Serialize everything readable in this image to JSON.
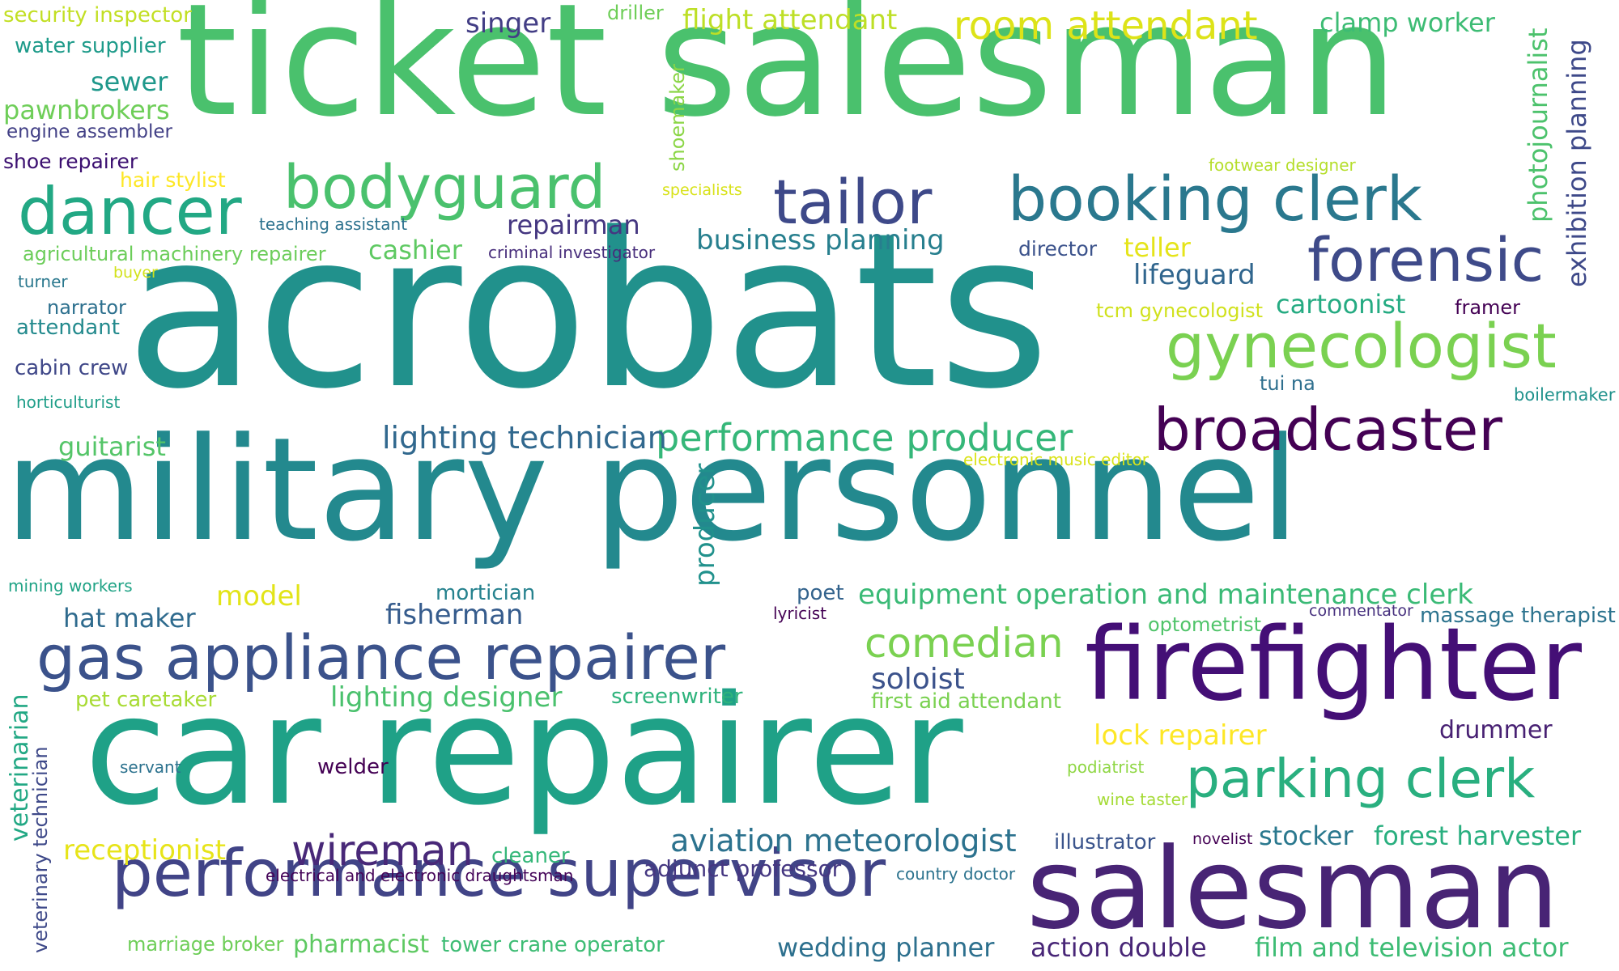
{
  "words": [
    {
      "id": "ticket-salesman",
      "text": "ticket salesman",
      "color": "#4ac16d"
    },
    {
      "id": "acrobats",
      "text": "acrobats",
      "color": "#21918c"
    },
    {
      "id": "military-personnel",
      "text": "military personnel",
      "color": "#23898e"
    },
    {
      "id": "car-repairer",
      "text": "car repairer",
      "color": "#1fa187"
    },
    {
      "id": "salesman",
      "text": "salesman",
      "color": "#482475"
    },
    {
      "id": "firefighter",
      "text": "firefighter",
      "color": "#440f76"
    },
    {
      "id": "gas-appliance-repairer",
      "text": "gas appliance repairer",
      "color": "#3b528b"
    },
    {
      "id": "performance-supervisor",
      "text": "performance supervisor",
      "color": "#414487"
    },
    {
      "id": "bodyguard",
      "text": "bodyguard",
      "color": "#4ac16d"
    },
    {
      "id": "dancer",
      "text": "dancer",
      "color": "#22a884"
    },
    {
      "id": "booking-clerk",
      "text": "booking clerk",
      "color": "#2a788e"
    },
    {
      "id": "tailor",
      "text": "tailor",
      "color": "#3e4989"
    },
    {
      "id": "forensic",
      "text": "forensic",
      "color": "#3e4a89"
    },
    {
      "id": "gynecologist",
      "text": "gynecologist",
      "color": "#7ad151"
    },
    {
      "id": "broadcaster",
      "text": "broadcaster",
      "color": "#440154"
    },
    {
      "id": "parking-clerk",
      "text": "parking clerk",
      "color": "#29af7f"
    },
    {
      "id": "room-attendant",
      "text": "room attendant",
      "color": "#dde318"
    },
    {
      "id": "performance-producer",
      "text": "performance producer",
      "color": "#35b779"
    },
    {
      "id": "comedian",
      "text": "comedian",
      "color": "#7ad151"
    },
    {
      "id": "wireman",
      "text": "wireman",
      "color": "#482878"
    },
    {
      "id": "aviation-meteorologist",
      "text": "aviation meteorologist",
      "color": "#2c728e"
    },
    {
      "id": "flight-attendant",
      "text": "flight attendant",
      "color": "#bddf26"
    },
    {
      "id": "clamp-worker",
      "text": "clamp worker",
      "color": "#3dbc74"
    },
    {
      "id": "singer",
      "text": "singer",
      "color": "#433e85"
    },
    {
      "id": "driller",
      "text": "driller",
      "color": "#6ece58"
    },
    {
      "id": "security-inspector",
      "text": "security inspector",
      "color": "#c2df23"
    },
    {
      "id": "water-supplier",
      "text": "water supplier",
      "color": "#1e9b8a"
    },
    {
      "id": "sewer",
      "text": "sewer",
      "color": "#1f988b"
    },
    {
      "id": "pawnbrokers",
      "text": "pawnbrokers",
      "color": "#6ece58"
    },
    {
      "id": "engine-assembler",
      "text": "engine assembler",
      "color": "#424086"
    },
    {
      "id": "shoe-repairer",
      "text": "shoe repairer",
      "color": "#3b0f70"
    },
    {
      "id": "hair-stylist",
      "text": "hair stylist",
      "color": "#fde725"
    },
    {
      "id": "teaching-assistant",
      "text": "teaching assistant",
      "color": "#2c728e"
    },
    {
      "id": "agricultural-machinery-repairer",
      "text": "agricultural machinery repairer",
      "color": "#6ccd5a"
    },
    {
      "id": "turner",
      "text": "turner",
      "color": "#2a788e"
    },
    {
      "id": "buyer",
      "text": "buyer",
      "color": "#d2e21b"
    },
    {
      "id": "narrator",
      "text": "narrator",
      "color": "#2d708e"
    },
    {
      "id": "attendant",
      "text": "attendant",
      "color": "#238a8d"
    },
    {
      "id": "cabin-crew",
      "text": "cabin crew",
      "color": "#3f4788"
    },
    {
      "id": "horticulturist",
      "text": "horticulturist",
      "color": "#1f9e89"
    },
    {
      "id": "guitarist",
      "text": "guitarist",
      "color": "#54c568"
    },
    {
      "id": "repairman",
      "text": "repairman",
      "color": "#453781"
    },
    {
      "id": "cashier",
      "text": "cashier",
      "color": "#5ec962"
    },
    {
      "id": "criminal-investigator",
      "text": "criminal investigator",
      "color": "#472d7b"
    },
    {
      "id": "business-planning",
      "text": "business planning",
      "color": "#277f8e"
    },
    {
      "id": "director",
      "text": "director",
      "color": "#3b528b"
    },
    {
      "id": "teller",
      "text": "teller",
      "color": "#e5e419"
    },
    {
      "id": "lifeguard",
      "text": "lifeguard",
      "color": "#31668e"
    },
    {
      "id": "tcm-gynecologist",
      "text": "tcm gynecologist",
      "color": "#d0e11c"
    },
    {
      "id": "cartoonist",
      "text": "cartoonist",
      "color": "#25ab82"
    },
    {
      "id": "framer",
      "text": "framer",
      "color": "#440154"
    },
    {
      "id": "specialists",
      "text": "specialists",
      "color": "#d8e219"
    },
    {
      "id": "footwear-designer",
      "text": "footwear designer",
      "color": "#b5de2b"
    },
    {
      "id": "tui-na",
      "text": "tui na",
      "color": "#2e6f8e"
    },
    {
      "id": "boilermaker",
      "text": "boilermaker",
      "color": "#20928c"
    },
    {
      "id": "lighting-technician",
      "text": "lighting technician",
      "color": "#31688e"
    },
    {
      "id": "electronic-music-editor",
      "text": "electronic music editor",
      "color": "#dae319"
    },
    {
      "id": "mining-workers",
      "text": "mining workers",
      "color": "#20a386"
    },
    {
      "id": "model",
      "text": "model",
      "color": "#e2e418"
    },
    {
      "id": "mortician",
      "text": "mortician",
      "color": "#26828e"
    },
    {
      "id": "poet",
      "text": "poet",
      "color": "#33638d"
    },
    {
      "id": "lyricist",
      "text": "lyricist",
      "color": "#440154"
    },
    {
      "id": "equipment-operation-and-maintenance-clerk",
      "text": "equipment operation and maintenance clerk",
      "color": "#3aba76"
    },
    {
      "id": "optometrist",
      "text": "optometrist",
      "color": "#50c46a"
    },
    {
      "id": "commentator",
      "text": "commentator",
      "color": "#46307e"
    },
    {
      "id": "massage-therapist",
      "text": "massage therapist",
      "color": "#2c738e"
    },
    {
      "id": "hat-maker",
      "text": "hat maker",
      "color": "#2f6b8e"
    },
    {
      "id": "fisherman",
      "text": "fisherman",
      "color": "#365c8d"
    },
    {
      "id": "pet-caretaker",
      "text": "pet caretaker",
      "color": "#a8db34"
    },
    {
      "id": "lighting-designer",
      "text": "lighting designer",
      "color": "#4ac16d"
    },
    {
      "id": "screenwriter",
      "text": "screenwriter",
      "color": "#2eb37c"
    },
    {
      "id": "soloist",
      "text": "soloist",
      "color": "#3b528b"
    },
    {
      "id": "first-aid-attendant",
      "text": "first aid attendant",
      "color": "#7ad151"
    },
    {
      "id": "lock-repairer",
      "text": "lock repairer",
      "color": "#fde725"
    },
    {
      "id": "drummer",
      "text": "drummer",
      "color": "#482173"
    },
    {
      "id": "servant",
      "text": "servant",
      "color": "#2c728e"
    },
    {
      "id": "welder",
      "text": "welder",
      "color": "#440154"
    },
    {
      "id": "podiatrist",
      "text": "podiatrist",
      "color": "#8fd744"
    },
    {
      "id": "wine-taster",
      "text": "wine taster",
      "color": "#a5db36"
    },
    {
      "id": "receptionist",
      "text": "receptionist",
      "color": "#e7e419"
    },
    {
      "id": "cleaner",
      "text": "cleaner",
      "color": "#35b779"
    },
    {
      "id": "electrical-and-electronic-draughtsman",
      "text": "electrical and electronic draughtsman",
      "color": "#450559"
    },
    {
      "id": "adjunct-professor",
      "text": "adjunct professor",
      "color": "#453781"
    },
    {
      "id": "illustrator",
      "text": "illustrator",
      "color": "#3a548c"
    },
    {
      "id": "country-doctor",
      "text": "country doctor",
      "color": "#2c738e"
    },
    {
      "id": "novelist",
      "text": "novelist",
      "color": "#440154"
    },
    {
      "id": "stocker",
      "text": "stocker",
      "color": "#2a788e"
    },
    {
      "id": "forest-harvester",
      "text": "forest harvester",
      "color": "#29af7f"
    },
    {
      "id": "marriage-broker",
      "text": "marriage broker",
      "color": "#6ece58"
    },
    {
      "id": "pharmacist",
      "text": "pharmacist",
      "color": "#5ec962"
    },
    {
      "id": "tower-crane-operator",
      "text": "tower crane operator",
      "color": "#3dbc74"
    },
    {
      "id": "wedding-planner",
      "text": "wedding planner",
      "color": "#2d708e"
    },
    {
      "id": "action-double",
      "text": "action double",
      "color": "#482677"
    },
    {
      "id": "film-and-television-actor",
      "text": "film and television actor",
      "color": "#3dbc74"
    },
    {
      "id": "shoemaker",
      "text": "shoemaker",
      "color": "#8bd646"
    },
    {
      "id": "photojournalist",
      "text": "photojournalist",
      "color": "#4cc26c"
    },
    {
      "id": "exhibition-planning",
      "text": "exhibition planning",
      "color": "#3e4989"
    },
    {
      "id": "producer",
      "text": "producer",
      "color": "#21918c"
    },
    {
      "id": "veterinarian",
      "text": "veterinarian",
      "color": "#22a884"
    },
    {
      "id": "veterinary-technician",
      "text": "veterinary technician",
      "color": "#3e4989"
    }
  ]
}
